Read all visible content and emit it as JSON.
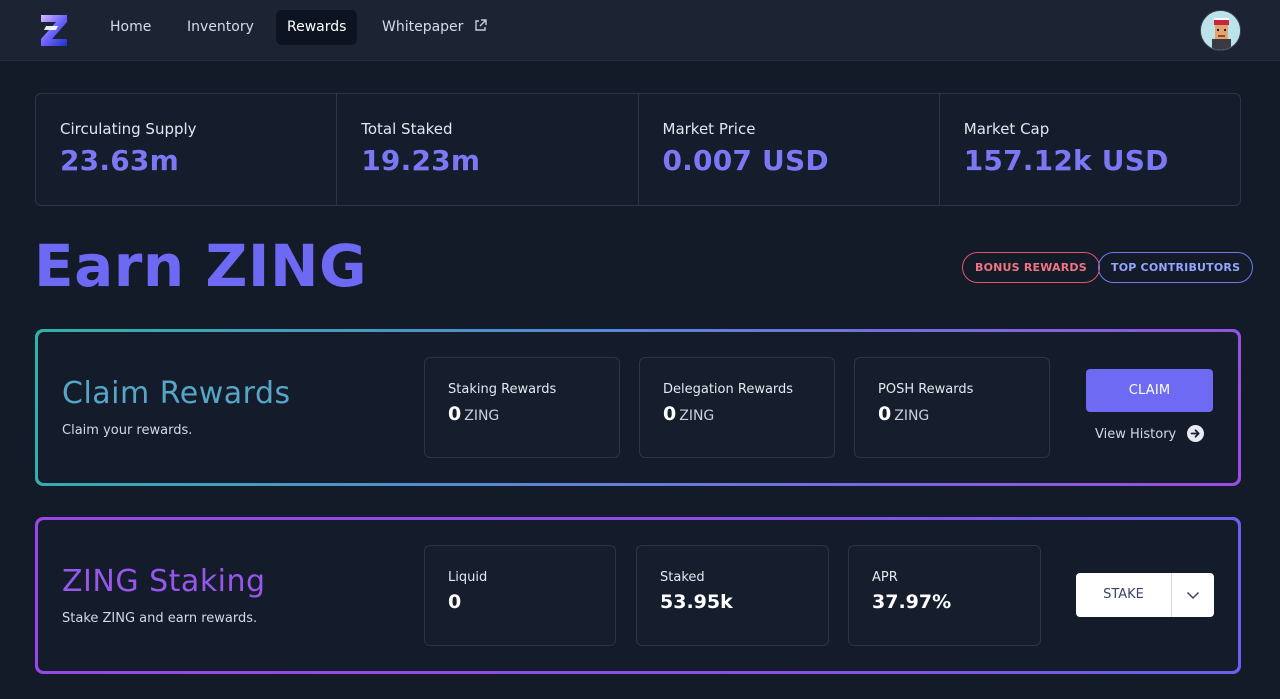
{
  "nav": {
    "items": [
      {
        "label": "Home"
      },
      {
        "label": "Inventory"
      },
      {
        "label": "Rewards",
        "active": true
      },
      {
        "label": "Whitepaper",
        "icon": "external-link-icon"
      }
    ],
    "logo_icon": "zing-logo",
    "avatar_icon": "user-avatar"
  },
  "stats": [
    {
      "label": "Circulating Supply",
      "value": "23.63m"
    },
    {
      "label": "Total Staked",
      "value": "19.23m"
    },
    {
      "label": "Market Price",
      "value": "0.007 USD"
    },
    {
      "label": "Market Cap",
      "value": "157.12k USD"
    }
  ],
  "page": {
    "title": "Earn ZING",
    "bonus_label": "BONUS REWARDS",
    "top_label": "TOP CONTRIBUTORS"
  },
  "claim": {
    "title": "Claim Rewards",
    "subtitle": "Claim your rewards.",
    "items": [
      {
        "label": "Staking Rewards",
        "value": "0",
        "unit": "ZING"
      },
      {
        "label": "Delegation Rewards",
        "value": "0",
        "unit": "ZING"
      },
      {
        "label": "POSH Rewards",
        "value": "0",
        "unit": "ZING"
      }
    ],
    "button_label": "CLAIM",
    "history_label": "View History"
  },
  "staking": {
    "title": "ZING Staking",
    "subtitle": "Stake ZING and earn rewards.",
    "items": [
      {
        "label": "Liquid",
        "value": "0"
      },
      {
        "label": "Staked",
        "value": "53.95k"
      },
      {
        "label": "APR",
        "value": "37.97%"
      }
    ],
    "button_label": "STAKE"
  },
  "colors": {
    "accent": "#6f6af3",
    "background": "#131a28",
    "bonus": "#e0576c",
    "top": "#6f7bef"
  }
}
